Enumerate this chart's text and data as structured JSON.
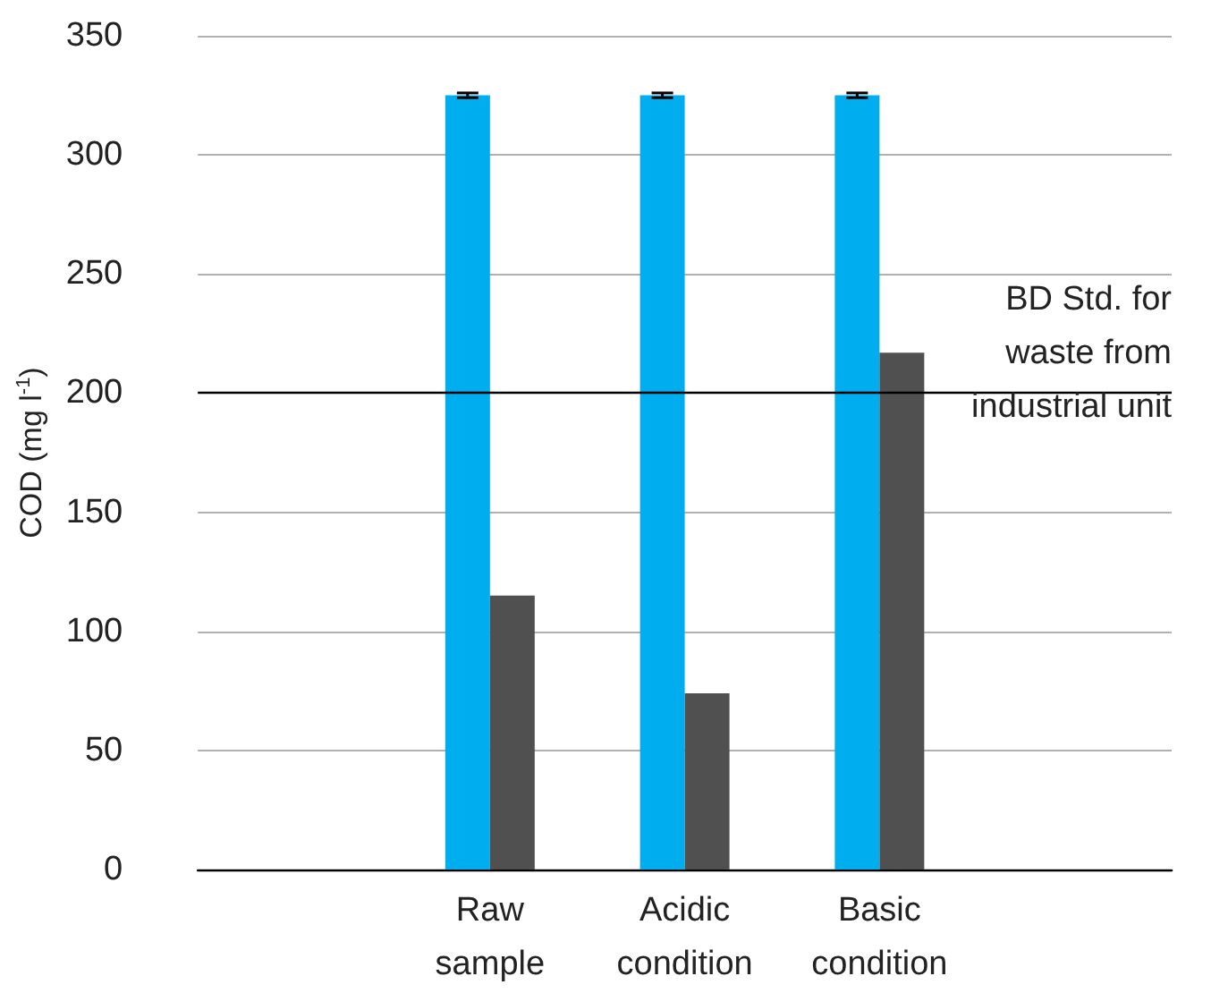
{
  "chart_data": {
    "type": "bar",
    "ylabel": "COD (mg l$^{-1}$)",
    "categories": [
      null,
      "Raw sample",
      "Acidic condition",
      "Basic condition",
      null
    ],
    "series": [
      {
        "color": "#00aeef",
        "values": [
          null,
          325,
          325,
          325,
          null
        ],
        "errors": [
          null,
          1,
          1,
          1,
          null
        ]
      },
      {
        "color": "#505050",
        "values": [
          null,
          115,
          74,
          217,
          null
        ]
      }
    ],
    "ylim": [
      0,
      350
    ],
    "yticks": [
      0,
      50,
      100,
      150,
      200,
      250,
      300,
      350
    ],
    "grid": "y",
    "ref_lines": [
      {
        "axis": "y",
        "value": 200,
        "label": "BD Std. for\nwaste from\nindustrial unit",
        "color": "#000000"
      }
    ]
  }
}
